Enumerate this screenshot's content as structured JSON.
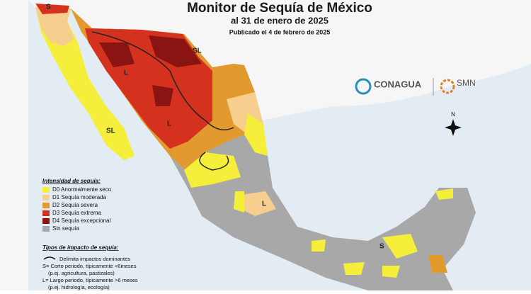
{
  "header": {
    "title": "Monitor de Sequía de México",
    "subtitle": "al 31 de enero de 2025",
    "published": "Publicado el 4 de febrero de 2025"
  },
  "logos": {
    "conagua": "CONAGUA",
    "smn": "SMN"
  },
  "legend": {
    "title": "Intensidad de sequía:",
    "items": [
      {
        "label": "D0 Anormalmente seco",
        "color": "#f5ef3c"
      },
      {
        "label": "D1 Sequía moderada",
        "color": "#f6cf8f"
      },
      {
        "label": "D2 Sequía severa",
        "color": "#e29a2f"
      },
      {
        "label": "D3 Sequía extrema",
        "color": "#d4321f"
      },
      {
        "label": "D4 Sequía excepcional",
        "color": "#8a1412"
      },
      {
        "label": "Sin sequía",
        "color": "#a8a8a8"
      }
    ]
  },
  "impacts": {
    "title": "Tipos de impacto de sequía:",
    "items": [
      "Delimita impactos dominantes",
      "S= Corto periodo, típicamente <6meses",
      "(p.ej. agricultura, pastizales)",
      "L= Largo periodo, típicamente >6 meses",
      "(p.ej. hidrología, ecología)"
    ]
  },
  "map_labels": [
    "S",
    "SL",
    "L",
    "SL",
    "L",
    "S",
    "L"
  ],
  "compass": "N"
}
